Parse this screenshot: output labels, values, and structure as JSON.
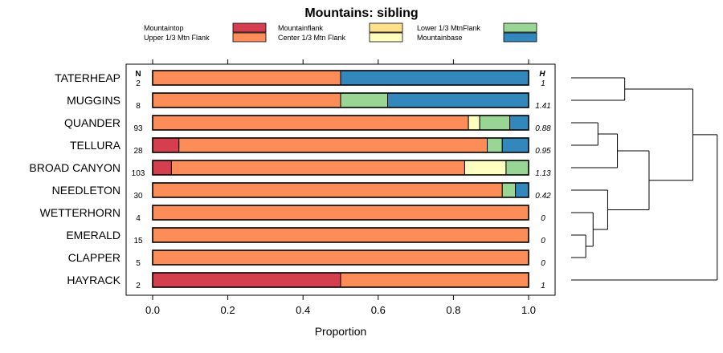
{
  "chart_data": {
    "type": "bar",
    "stacked": true,
    "orientation": "horizontal",
    "title": "Mountains: sibling",
    "xlabel": "Proportion",
    "ylabel": "",
    "xlim": [
      0,
      1
    ],
    "xticks": [
      "0.0",
      "0.2",
      "0.4",
      "0.6",
      "0.8",
      "1.0"
    ],
    "n_header": "N",
    "h_header": "H",
    "legend": [
      {
        "name": "Mountaintop",
        "color": "#d53e4f"
      },
      {
        "name": "Upper 1/3 Mtn Flank",
        "color": "#fc8d59"
      },
      {
        "name": "Mountainflank",
        "color": "#fee08b"
      },
      {
        "name": "Center 1/3 Mtn Flank",
        "color": "#ffffbf"
      },
      {
        "name": "Lower 1/3 MtnFlank",
        "color": "#99d594"
      },
      {
        "name": "Mountainbase",
        "color": "#3288bd"
      }
    ],
    "categories": [
      "TATERHEAP",
      "MUGGINS",
      "QUANDER",
      "TELLURA",
      "BROAD CANYON",
      "NEEDLETON",
      "WETTERHORN",
      "EMERALD",
      "CLAPPER",
      "HAYRACK"
    ],
    "n": [
      "2",
      "8",
      "93",
      "28",
      "103",
      "30",
      "4",
      "15",
      "5",
      "2"
    ],
    "h": [
      "1",
      "1.41",
      "0.88",
      "0.95",
      "1.13",
      "0.42",
      "0",
      "0",
      "0",
      "1"
    ],
    "series": [
      {
        "name": "Mountaintop",
        "values": [
          0,
          0,
          0,
          0.07,
          0.05,
          0,
          0,
          0,
          0,
          0.5
        ]
      },
      {
        "name": "Upper 1/3 Mtn Flank",
        "values": [
          0.5,
          0.5,
          0.84,
          0.82,
          0.78,
          0.93,
          1,
          1,
          1,
          0.5
        ]
      },
      {
        "name": "Mountainflank",
        "values": [
          0,
          0,
          0,
          0,
          0,
          0,
          0,
          0,
          0,
          0
        ]
      },
      {
        "name": "Center 1/3 Mtn Flank",
        "values": [
          0,
          0,
          0.03,
          0,
          0.11,
          0,
          0,
          0,
          0,
          0
        ]
      },
      {
        "name": "Lower 1/3 MtnFlank",
        "values": [
          0,
          0.125,
          0.08,
          0.04,
          0.06,
          0.035,
          0,
          0,
          0,
          0
        ]
      },
      {
        "name": "Mountainbase",
        "values": [
          0.5,
          0.375,
          0.05,
          0.07,
          0,
          0.035,
          0,
          0,
          0,
          0
        ]
      }
    ],
    "dendrogram": {
      "leaves": [
        "TATERHEAP",
        "MUGGINS",
        "QUANDER",
        "TELLURA",
        "BROAD CANYON",
        "NEEDLETON",
        "WETTERHORN",
        "EMERALD",
        "CLAPPER",
        "HAYRACK"
      ],
      "merges": [
        {
          "left": "TATERHEAP",
          "right": "MUGGINS",
          "height": 0.22
        },
        {
          "left": "QUANDER",
          "right": "TELLURA",
          "height": 0.11
        },
        {
          "left": "QUANDER+TELLURA",
          "right": "BROAD CANYON",
          "height": 0.19
        },
        {
          "left": "EMERALD",
          "right": "CLAPPER",
          "height": 0.06
        },
        {
          "left": "WETTERHORN",
          "right": "EMERALD+CLAPPER",
          "height": 0.09
        },
        {
          "left": "NEEDLETON",
          "right": "WETTERHORN+EMERALD+CLAPPER",
          "height": 0.15
        },
        {
          "left": "QUANDER+TELLURA+BROAD CANYON",
          "right": "NEEDLETON+WETTERHORN+EMERALD+CLAPPER",
          "height": 0.32
        },
        {
          "left": "TATERHEAP+MUGGINS",
          "right": "QUANDER+TELLURA+BROAD CANYON+NEEDLETON+WETTERHORN+EMERALD+CLAPPER",
          "height": 0.5
        },
        {
          "left": "ALL",
          "right": "HAYRACK",
          "height": 0.6
        }
      ]
    }
  }
}
